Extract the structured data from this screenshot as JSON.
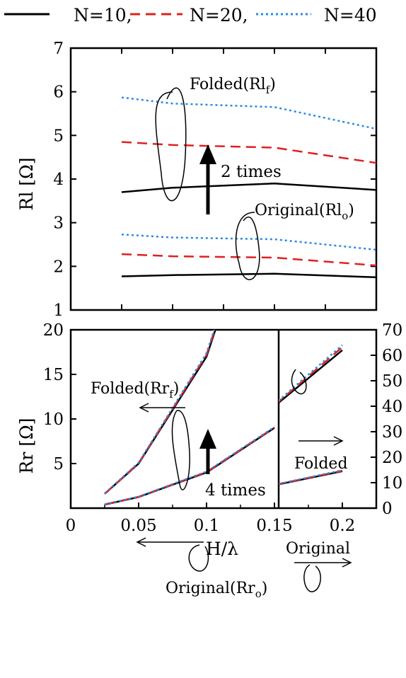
{
  "legend": {
    "entries": [
      {
        "label": "N=10,",
        "color": "#000000",
        "dash": "solid"
      },
      {
        "label": "N=20,",
        "color": "#e02020",
        "dash": "dashed"
      },
      {
        "label": "N=40",
        "color": "#2a8ae8",
        "dash": "dotted"
      }
    ]
  },
  "chart_data": [
    {
      "type": "line",
      "panel": "top",
      "xlabel": "",
      "ylabel": "Rl [Ω]",
      "xlim": [
        0,
        0.15
      ],
      "ylim": [
        1,
        7
      ],
      "yticks": [
        "1",
        "2",
        "3",
        "4",
        "5",
        "6",
        "7"
      ],
      "x": [
        0.025,
        0.05,
        0.1,
        0.15
      ],
      "series": [
        {
          "name": "N=10",
          "group": "Folded",
          "values": [
            3.7,
            3.8,
            3.9,
            3.75
          ]
        },
        {
          "name": "N=20",
          "group": "Folded",
          "values": [
            4.85,
            4.78,
            4.72,
            4.37
          ]
        },
        {
          "name": "N=40",
          "group": "Folded",
          "values": [
            5.87,
            5.73,
            5.65,
            5.15
          ]
        },
        {
          "name": "N=10",
          "group": "Original",
          "values": [
            1.77,
            1.8,
            1.83,
            1.75
          ]
        },
        {
          "name": "N=20",
          "group": "Original",
          "values": [
            2.28,
            2.23,
            2.2,
            2.02
          ]
        },
        {
          "name": "N=40",
          "group": "Original",
          "values": [
            2.73,
            2.66,
            2.62,
            2.38
          ]
        }
      ],
      "annotations": {
        "folded": "Folded(Rl",
        "folded_sub": "f",
        "folded_close": ")",
        "original": "Original(Rl",
        "original_sub": "o",
        "original_close": ")",
        "ratio": "2 times"
      }
    },
    {
      "type": "line",
      "panel": "bottom",
      "xlabel": "H/λ",
      "ylabel": "Rr [Ω]",
      "xlim": [
        0,
        0.225
      ],
      "xticks": [
        "0",
        "0.05",
        "0.1",
        "0.15",
        "0.2"
      ],
      "ylim_left": [
        0,
        20
      ],
      "yticks_left": [
        "5",
        "10",
        "15",
        "20"
      ],
      "ylim_right": [
        0,
        70
      ],
      "yticks_right": [
        "0",
        "10",
        "20",
        "30",
        "40",
        "50",
        "60",
        "70"
      ],
      "left_segment": {
        "x": [
          0.025,
          0.05,
          0.1,
          0.15
        ],
        "series": [
          {
            "name": "N=10",
            "group": "Folded",
            "values": [
              1.6,
              5.0,
              17.0,
              40.0
            ]
          },
          {
            "name": "N=20",
            "group": "Folded",
            "values": [
              1.6,
              5.05,
              17.2,
              40.3
            ]
          },
          {
            "name": "N=40",
            "group": "Folded",
            "values": [
              1.65,
              5.1,
              17.4,
              40.6
            ]
          },
          {
            "name": "N=10",
            "group": "Original",
            "values": [
              0.4,
              1.25,
              4.0,
              9.0
            ]
          },
          {
            "name": "N=20",
            "group": "Original",
            "values": [
              0.42,
              1.27,
              4.05,
              9.05
            ]
          },
          {
            "name": "N=40",
            "group": "Original",
            "values": [
              0.43,
              1.29,
              4.1,
              9.1
            ]
          }
        ]
      },
      "right_segment": {
        "x": [
          0.15,
          0.2
        ],
        "series": [
          {
            "name": "N=10",
            "group": "Folded",
            "values": [
              40.0,
              62.0
            ]
          },
          {
            "name": "N=20",
            "group": "Folded",
            "values": [
              40.4,
              63.2
            ]
          },
          {
            "name": "N=40",
            "group": "Folded",
            "values": [
              40.8,
              64.0
            ]
          },
          {
            "name": "N=10",
            "group": "Original",
            "values": [
              9.0,
              14.5
            ]
          },
          {
            "name": "N=20",
            "group": "Original",
            "values": [
              9.1,
              14.7
            ]
          },
          {
            "name": "N=40",
            "group": "Original",
            "values": [
              9.2,
              14.9
            ]
          }
        ]
      },
      "annotations": {
        "folded": "Folded(Rr",
        "folded_sub": "f",
        "folded_close": ")",
        "original": "Original(Rr",
        "original_sub": "o",
        "original_close": ")",
        "ratio": "4 times",
        "folded_right": "Folded",
        "original_right": "Original"
      }
    }
  ]
}
